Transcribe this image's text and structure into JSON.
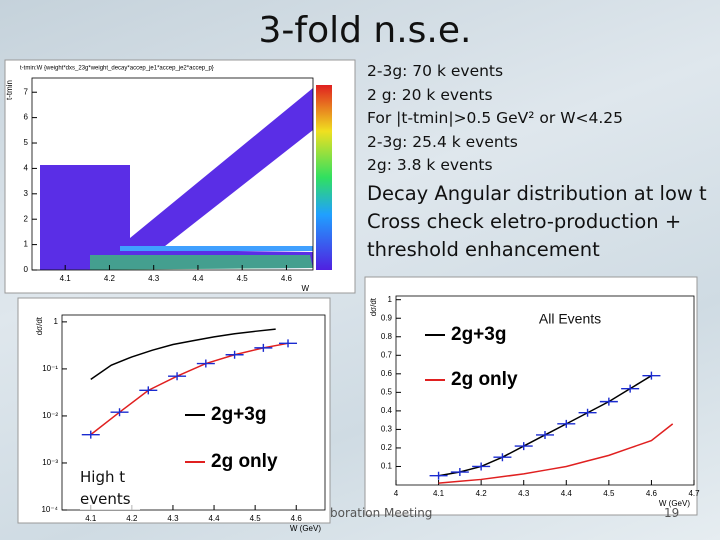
{
  "title": "3-fold n.s.e.",
  "notes": [
    "2-3g: 70 k events",
    "2 g:   20 k events",
    "For |t-tmin|>0.5 GeV² or W<4.25",
    "2-3g: 25.4 k events",
    "2g:  3.8 k events"
  ],
  "points": [
    "Decay Angular distribution at low t",
    "Cross check eletro-production + threshold enhancement"
  ],
  "footer": "boration Meeting",
  "page_number": "19",
  "plots": [
    {
      "type": "heatmap",
      "title": "t-tmin:W {weight*dxs_23g*weight_decay*accep_je1*accep_je2*accep_p}",
      "xlabel": "W",
      "ylabel": "t-tmin",
      "xlim": [
        4.025,
        4.66
      ],
      "ylim": [
        0,
        7.56
      ],
      "xticks": [
        4.1,
        4.2,
        4.3,
        4.4,
        4.5,
        4.6
      ],
      "yticks": [
        0,
        1,
        2,
        3,
        4,
        5,
        6,
        7
      ]
    },
    {
      "type": "line",
      "xlabel": "W (GeV)",
      "ylabel": "dσ/dt",
      "log_y": true,
      "xlim": [
        4.03,
        4.67
      ],
      "ylim": [
        0.0001,
        1.4
      ],
      "xticks": [
        4.1,
        4.2,
        4.3,
        4.4,
        4.5,
        4.6
      ],
      "yticks": [
        {
          "value": 1,
          "label": "1"
        },
        {
          "value": 0.1,
          "label": "10⁻¹"
        },
        {
          "value": 0.01,
          "label": "10⁻²"
        },
        {
          "value": 0.001,
          "label": "10⁻³"
        },
        {
          "value": 0.0001,
          "label": "10⁻⁴"
        }
      ],
      "annotation": "High t events",
      "series": [
        {
          "name": "2g+3g",
          "color": "#000000",
          "x": [
            4.1,
            4.15,
            4.2,
            4.25,
            4.3,
            4.35,
            4.4,
            4.45,
            4.5,
            4.55
          ],
          "values": [
            0.06,
            0.12,
            0.18,
            0.25,
            0.33,
            0.4,
            0.48,
            0.56,
            0.63,
            0.7
          ]
        },
        {
          "name": "2g only",
          "color": "#e02020",
          "x": [
            4.1,
            4.17,
            4.24,
            4.31,
            4.38,
            4.45,
            4.52,
            4.58
          ],
          "values": [
            0.004,
            0.012,
            0.035,
            0.07,
            0.13,
            0.2,
            0.28,
            0.35
          ]
        }
      ]
    },
    {
      "type": "line",
      "xlabel": "W (GeV)",
      "ylabel": "dσ/dt",
      "xlim": [
        4.0,
        4.7
      ],
      "ylim": [
        0,
        1.02
      ],
      "xticks": [
        4,
        4.1,
        4.2,
        4.3,
        4.4,
        4.5,
        4.6,
        4.7
      ],
      "yticks": [
        0.1,
        0.2,
        0.3,
        0.4,
        0.5,
        0.6,
        0.7,
        0.8,
        0.9,
        1
      ],
      "annotation": "All Events",
      "series": [
        {
          "name": "2g+3g",
          "color": "#000000",
          "x": [
            4.1,
            4.15,
            4.2,
            4.25,
            4.3,
            4.35,
            4.4,
            4.45,
            4.5,
            4.55,
            4.6
          ],
          "values": [
            0.05,
            0.07,
            0.1,
            0.15,
            0.21,
            0.27,
            0.33,
            0.39,
            0.45,
            0.52,
            0.59
          ]
        },
        {
          "name": "2g only",
          "color": "#e02020",
          "x": [
            4.1,
            4.15,
            4.2,
            4.25,
            4.3,
            4.35,
            4.4,
            4.45,
            4.5,
            4.55,
            4.6,
            4.65
          ],
          "values": [
            0.01,
            0.02,
            0.03,
            0.045,
            0.06,
            0.08,
            0.1,
            0.13,
            0.16,
            0.2,
            0.24,
            0.33
          ]
        }
      ]
    }
  ]
}
